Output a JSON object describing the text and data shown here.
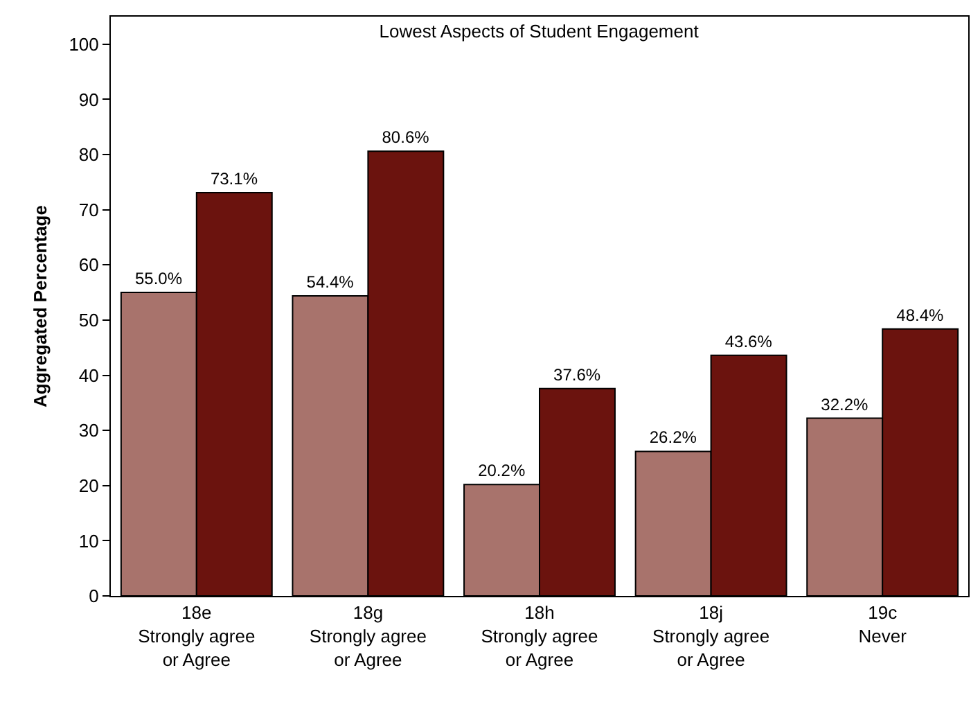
{
  "chart_data": {
    "type": "bar",
    "title": "Lowest Aspects of Student Engagement",
    "ylabel": "Aggregated Percentage",
    "categories": [
      "18e\nStrongly agree\nor Agree",
      "18g\nStrongly agree\nor Agree",
      "18h\nStrongly agree\nor Agree",
      "18j\nStrongly agree\nor Agree",
      "19c\nNever"
    ],
    "series": [
      {
        "color": "#a8736c",
        "values": [
          55.0,
          54.4,
          20.2,
          26.2,
          32.2
        ],
        "value_labels": [
          "55.0%",
          "54.4%",
          "20.2%",
          "26.2%",
          "32.2%"
        ]
      },
      {
        "color": "#6b130e",
        "values": [
          73.1,
          80.6,
          37.6,
          43.6,
          48.4
        ],
        "value_labels": [
          "73.1%",
          "80.6%",
          "37.6%",
          "43.6%",
          "48.4%"
        ]
      }
    ],
    "ylim": [
      0,
      105
    ],
    "yticks": [
      0,
      10,
      20,
      30,
      40,
      50,
      60,
      70,
      80,
      90,
      100
    ],
    "grid": false
  }
}
